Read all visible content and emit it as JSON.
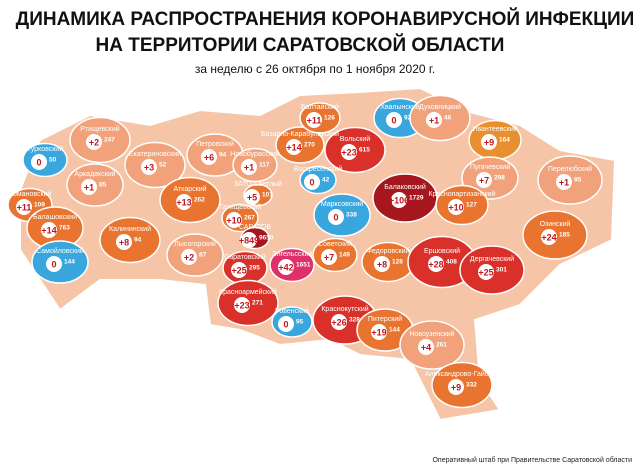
{
  "header": {
    "title_line1": "ДИНАМИКА РАСПРОСТРАНЕНИЯ КОРОНАВИРУСНОЙ ИНФЕКЦИИ",
    "title_line2": "НА ТЕРРИТОРИИ САРАТОВСКОЙ ОБЛАСТИ",
    "subtitle": "за неделю с 26 октября по 1 ноября 2020 г."
  },
  "districts": [
    {
      "name": "Ртищевский",
      "increase": "+2",
      "total": 247,
      "color": "#f2a27a"
    },
    {
      "name": "Турковский",
      "increase": "0",
      "total": 50,
      "color": "#3aa6de"
    },
    {
      "name": "Аркадакский",
      "increase": "+1",
      "total": 85,
      "color": "#f2a27a"
    },
    {
      "name": "Екатериновский",
      "increase": "+3",
      "total": 52,
      "color": "#f2a27a"
    },
    {
      "name": "Романовский",
      "increase": "+11",
      "total": 109,
      "color": "#e8742f"
    },
    {
      "name": "Балашовский",
      "increase": "+14",
      "total": 763,
      "color": "#e8742f"
    },
    {
      "name": "Самойловский",
      "increase": "0",
      "total": 144,
      "color": "#3aa6de"
    },
    {
      "name": "Калининский",
      "increase": "+8",
      "total": 94,
      "color": "#e8742f"
    },
    {
      "name": "Петровский",
      "increase": "+6",
      "total": 94,
      "color": "#f2a27a"
    },
    {
      "name": "Аткарский",
      "increase": "+13",
      "total": 262,
      "color": "#e8742f"
    },
    {
      "name": "Лысогорский",
      "increase": "+2",
      "total": 87,
      "color": "#f2a27a"
    },
    {
      "name": "Новобурасский",
      "increase": "+1",
      "total": 117,
      "color": "#f2a27a"
    },
    {
      "name": "Базарно-Карабулакский",
      "increase": "+14",
      "total": 270,
      "color": "#e8742f"
    },
    {
      "name": "Балтайский",
      "increase": "+11",
      "total": 126,
      "color": "#e8742f"
    },
    {
      "name": "Хвалынский",
      "increase": "0",
      "total": 92,
      "color": "#3aa6de"
    },
    {
      "name": "Вольский",
      "increase": "+23",
      "total": 615,
      "color": "#d9302a"
    },
    {
      "name": "Духовницкий",
      "increase": "+1",
      "total": 46,
      "color": "#f2a27a"
    },
    {
      "name": "Ивантеевский",
      "increase": "+9",
      "total": 164,
      "color": "#e8902f"
    },
    {
      "name": "Пугачевский",
      "increase": "+7",
      "total": 298,
      "color": "#f2a27a"
    },
    {
      "name": "Перелюбский",
      "increase": "+1",
      "total": 95,
      "color": "#f2a27a"
    },
    {
      "name": "Татищевский",
      "increase": "+10",
      "total": 267,
      "color": "#e8742f"
    },
    {
      "name": "ЗАТО Светлый",
      "increase": "+5",
      "total": 101,
      "color": "#e8742f"
    },
    {
      "name": "САРАТОВ",
      "increase": "+849",
      "total": 9650,
      "color": "#a5161e"
    },
    {
      "name": "Энгельсский",
      "increase": "+42",
      "total": 1651,
      "color": "#e0306a"
    },
    {
      "name": "Саратовский",
      "increase": "+25",
      "total": 295,
      "color": "#d9302a"
    },
    {
      "name": "Красноармейский",
      "increase": "+23",
      "total": 271,
      "color": "#d9302a"
    },
    {
      "name": "Ровенский",
      "increase": "0",
      "total": 95,
      "color": "#3aa6de"
    },
    {
      "name": "Воскресенский",
      "increase": "0",
      "total": 42,
      "color": "#3aa6de"
    },
    {
      "name": "Марксовский",
      "increase": "0",
      "total": 338,
      "color": "#3aa6de"
    },
    {
      "name": "Балаковский",
      "increase": "+106",
      "total": 1729,
      "color": "#a5161e"
    },
    {
      "name": "Краснокутский",
      "increase": "+26",
      "total": 328,
      "color": "#d9302a"
    },
    {
      "name": "Советский",
      "increase": "+7",
      "total": 149,
      "color": "#e8742f"
    },
    {
      "name": "Федоровский",
      "increase": "+8",
      "total": 128,
      "color": "#e8742f"
    },
    {
      "name": "Ершовский",
      "increase": "+28",
      "total": 408,
      "color": "#d9302a"
    },
    {
      "name": "Дергачевский",
      "increase": "+25",
      "total": 301,
      "color": "#d9302a"
    },
    {
      "name": "Озинский",
      "increase": "+24",
      "total": 185,
      "color": "#e8742f"
    },
    {
      "name": "Краснопартизанский",
      "increase": "+10",
      "total": 127,
      "color": "#e8742f"
    },
    {
      "name": "Питерский",
      "increase": "+19",
      "total": 144,
      "color": "#e8742f"
    },
    {
      "name": "Новоузенский",
      "increase": "+4",
      "total": 261,
      "color": "#f2a27a"
    },
    {
      "name": "Александрово-Гайский",
      "increase": "+9",
      "total": 332,
      "color": "#e8742f"
    }
  ],
  "footer": "Оперативный штаб при Правительстве Саратовской области"
}
